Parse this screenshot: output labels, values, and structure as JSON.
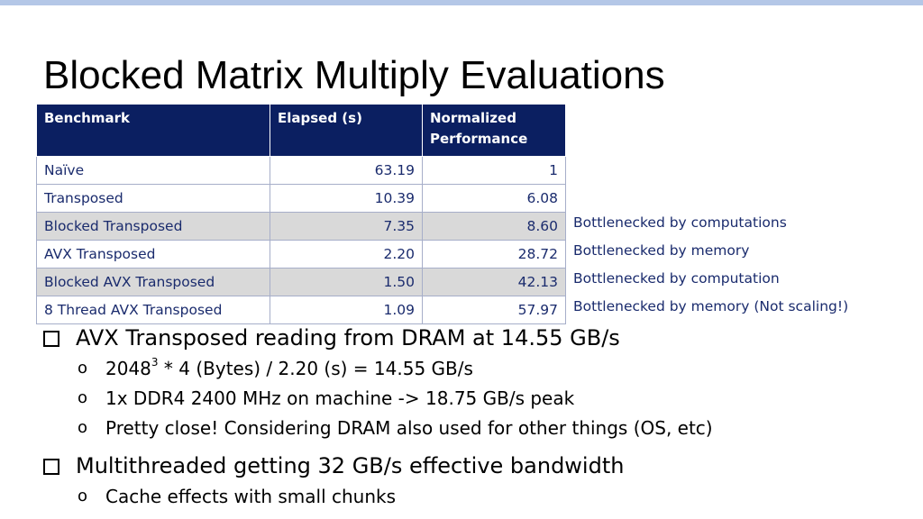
{
  "slide": {
    "title": "Blocked Matrix Multiply Evaluations"
  },
  "table": {
    "headers": [
      "Benchmark",
      "Elapsed (s)",
      "Normalized Performance"
    ],
    "rows": [
      {
        "benchmark": "Naïve",
        "elapsed": "63.19",
        "normalized": "1",
        "note": ""
      },
      {
        "benchmark": "Transposed",
        "elapsed": "10.39",
        "normalized": "6.08",
        "note": ""
      },
      {
        "benchmark": "Blocked Transposed",
        "elapsed": "7.35",
        "normalized": "8.60",
        "note": "Bottlenecked by computations"
      },
      {
        "benchmark": "AVX Transposed",
        "elapsed": "2.20",
        "normalized": "28.72",
        "note": "Bottlenecked by memory"
      },
      {
        "benchmark": "Blocked AVX Transposed",
        "elapsed": "1.50",
        "normalized": "42.13",
        "note": "Bottlenecked by computation"
      },
      {
        "benchmark": "8 Thread AVX Transposed",
        "elapsed": "1.09",
        "normalized": "57.97",
        "note": "Bottlenecked by memory (Not scaling!)"
      }
    ]
  },
  "bullets": [
    {
      "text": "AVX Transposed reading from DRAM at 14.55 GB/s",
      "sub": [
        {
          "base": "2048",
          "sup": "3",
          "rest": " * 4 (Bytes) / 2.20 (s) = 14.55 GB/s"
        },
        {
          "text": "1x DDR4 2400 MHz on machine -> 18.75 GB/s peak"
        },
        {
          "text": "Pretty close! Considering DRAM also used for other things (OS, etc)"
        }
      ]
    },
    {
      "text": "Multithreaded getting 32 GB/s effective bandwidth",
      "sub": [
        {
          "text": "Cache effects with small chunks"
        }
      ]
    }
  ],
  "sub_bullet_marker": "o",
  "colors": {
    "header_bg": "#0b1f61",
    "accent_bar": "#b4c7e7",
    "row_alt_bg": "#d9d9d9",
    "table_text": "#1a2b6d"
  }
}
